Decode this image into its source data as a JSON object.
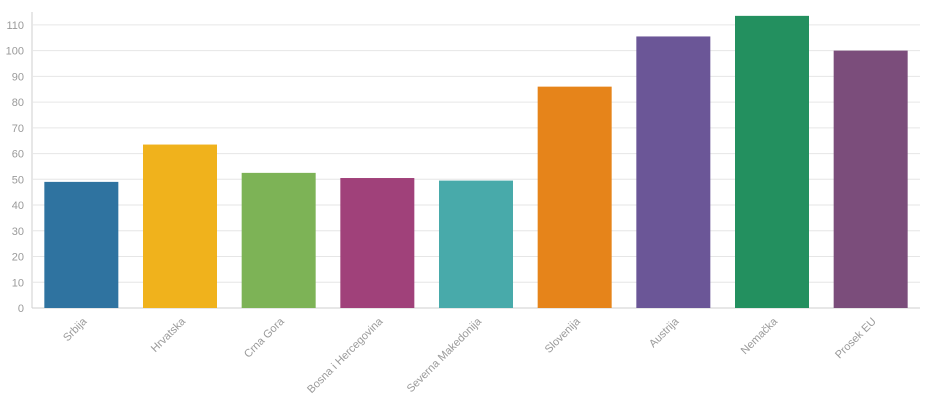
{
  "chart_data": {
    "type": "bar",
    "title": "",
    "xlabel": "",
    "ylabel": "",
    "ylim": [
      0,
      115
    ],
    "yticks": [
      0,
      10,
      20,
      30,
      40,
      50,
      60,
      70,
      80,
      90,
      100,
      110
    ],
    "grid": true,
    "categories": [
      "Srbija",
      "Hrvatska",
      "Crna Gora",
      "Bosna i Hercegovina",
      "Severna Makedonija",
      "Slovenija",
      "Austrija",
      "Nemačka",
      "Prosek EU"
    ],
    "values": [
      49,
      63.5,
      52.5,
      50.5,
      49.5,
      86,
      105.5,
      113.5,
      100
    ],
    "colors": [
      "#2f73a0",
      "#f0b21c",
      "#7db356",
      "#a0417a",
      "#48aaaa",
      "#e6841a",
      "#6b5697",
      "#23905f",
      "#7b4d7b"
    ]
  }
}
